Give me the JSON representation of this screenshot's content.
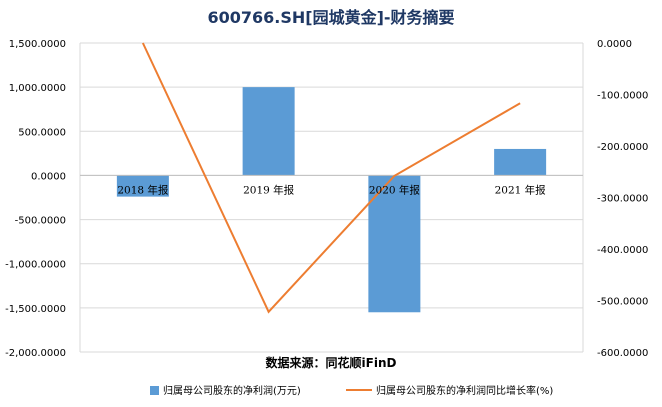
{
  "chart_data": {
    "type": "bar",
    "title": "600766.SH[园城黄金]-财务摘要",
    "source": "数据来源：同花顺iFinD",
    "categories": [
      "2018 年报",
      "2019 年报",
      "2020 年报",
      "2021 年报"
    ],
    "series": [
      {
        "name": "归属母公司股东的净利润(万元)",
        "type": "bar",
        "axis": "left",
        "color": "#5b9bd5",
        "values": [
          -240,
          1000,
          -1550,
          300
        ]
      },
      {
        "name": "归属母公司股东的净利润同比增长率(%)",
        "type": "line",
        "axis": "right",
        "color": "#ed7d31",
        "values": [
          0,
          -522,
          -258,
          -117
        ]
      }
    ],
    "y_left": {
      "ylim": [
        -2000,
        1500
      ],
      "ticks": [
        "1,500.0000",
        "1,000.0000",
        "500.0000",
        "0.0000",
        "-500.0000",
        "-1,000.0000",
        "-1,500.0000",
        "-2,000.0000"
      ]
    },
    "y_right": {
      "ylim": [
        -600,
        0
      ],
      "ticks": [
        "0.0000",
        "-100.0000",
        "-200.0000",
        "-300.0000",
        "-400.0000",
        "-500.0000",
        "-600.0000"
      ]
    },
    "grid": true,
    "legend": "bottom"
  }
}
